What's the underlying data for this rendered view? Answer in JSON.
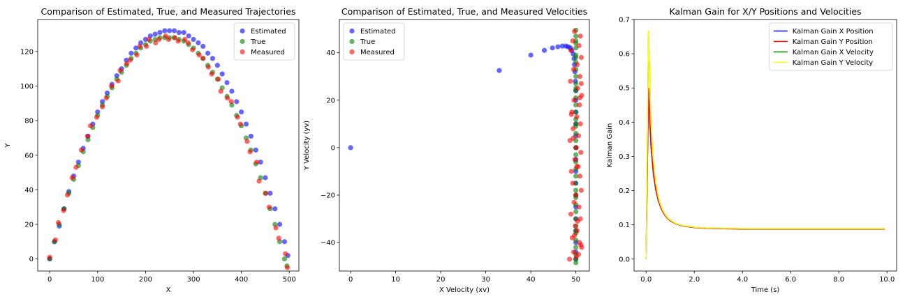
{
  "chart_data": [
    {
      "type": "scatter",
      "title": "Comparison of Estimated, True, and Measured Trajectories",
      "xlabel": "X",
      "ylabel": "Y",
      "xlim": [
        -25,
        520
      ],
      "ylim": [
        -7,
        138.5
      ],
      "xticks": [
        0,
        100,
        200,
        300,
        400,
        500
      ],
      "yticks": [
        0,
        20,
        40,
        60,
        80,
        100,
        120
      ],
      "grid": false,
      "legend_position": "top-right",
      "series": [
        {
          "name": "Estimated",
          "color": "#0000ff",
          "x": [
            0,
            10,
            20,
            30,
            40,
            50,
            60,
            70,
            80,
            90,
            100,
            110,
            120,
            130,
            140,
            150,
            160,
            170,
            180,
            190,
            200,
            210,
            220,
            230,
            240,
            250,
            260,
            270,
            280,
            290,
            300,
            310,
            320,
            330,
            340,
            350,
            360,
            370,
            380,
            390,
            400,
            410,
            420,
            430,
            440,
            450,
            460,
            470,
            480,
            490,
            497
          ],
          "y": [
            0,
            10,
            19,
            29,
            39,
            48,
            56,
            64,
            71,
            78,
            85,
            91,
            96,
            101,
            106,
            110,
            115,
            119,
            122,
            125,
            127,
            129,
            130,
            131,
            132,
            132,
            132,
            131,
            131,
            129,
            127,
            125,
            123,
            119,
            116,
            112,
            107,
            102,
            97,
            91,
            85,
            78,
            71,
            63,
            56,
            47,
            38,
            29,
            20,
            10,
            2
          ]
        },
        {
          "name": "True",
          "color": "#008000",
          "x": [
            0,
            10,
            20,
            30,
            40,
            50,
            60,
            70,
            80,
            90,
            100,
            110,
            120,
            130,
            140,
            150,
            160,
            170,
            180,
            190,
            200,
            210,
            220,
            230,
            240,
            250,
            260,
            270,
            280,
            290,
            300,
            310,
            320,
            330,
            340,
            350,
            360,
            370,
            380,
            390,
            400,
            410,
            420,
            430,
            440,
            450,
            460,
            470,
            480,
            490,
            495
          ],
          "y": [
            0,
            10,
            20,
            29,
            38,
            46,
            54,
            62,
            69,
            76,
            83,
            89,
            94,
            99,
            104,
            108,
            112,
            116,
            119,
            122,
            124,
            126,
            127,
            128,
            128,
            128,
            128,
            127,
            126,
            124,
            122,
            119,
            116,
            112,
            108,
            104,
            99,
            94,
            89,
            83,
            77,
            70,
            63,
            55,
            47,
            38,
            29,
            20,
            10,
            0,
            -4
          ]
        },
        {
          "name": "Measured",
          "color": "#ff0000",
          "x": [
            0,
            12,
            18,
            29,
            37,
            47,
            55,
            66,
            79,
            85,
            98,
            110,
            118,
            129,
            143,
            147,
            161,
            168,
            182,
            188,
            202,
            207,
            221,
            228,
            242,
            248,
            261,
            268,
            282,
            289,
            298,
            312,
            320,
            331,
            338,
            352,
            357,
            371,
            379,
            392,
            398,
            412,
            418,
            432,
            437,
            451,
            458,
            472,
            478,
            492,
            496
          ],
          "y": [
            1,
            11,
            21,
            28,
            37,
            47,
            53,
            63,
            71,
            77,
            82,
            88,
            93,
            100,
            103,
            109,
            113,
            115,
            118,
            123,
            123,
            127,
            125,
            127,
            129,
            127,
            128,
            126,
            127,
            125,
            121,
            118,
            116,
            111,
            107,
            104,
            97,
            93,
            91,
            82,
            78,
            68,
            62,
            56,
            45,
            38,
            30,
            18,
            12,
            3,
            -5
          ]
        }
      ]
    },
    {
      "type": "scatter",
      "title": "Comparison of Estimated, True, and Measured Velocities",
      "xlabel": "X Velocity (xv)",
      "ylabel": "Y Velocity (yv)",
      "xlim": [
        -2.5,
        53.0
      ],
      "ylim": [
        -52,
        54
      ],
      "xticks": [
        0,
        10,
        20,
        30,
        40,
        50
      ],
      "yticks": [
        -40,
        -20,
        0,
        20,
        40
      ],
      "grid": false,
      "legend_position": "top-left",
      "series": [
        {
          "name": "Estimated",
          "color": "#0000ff",
          "x": [
            0,
            33,
            40,
            43,
            44.8,
            46,
            47,
            47.8,
            48.3,
            48.8,
            49.1,
            49.4,
            49.6,
            49.7,
            49.8,
            49.9,
            50,
            50,
            50,
            50,
            50,
            50,
            50,
            50,
            50,
            50,
            50,
            50,
            50,
            50,
            50,
            50
          ],
          "y": [
            0,
            32.5,
            39,
            41,
            42,
            42.5,
            42.8,
            42.8,
            42.5,
            42,
            41,
            39.5,
            37.5,
            35,
            32,
            28,
            24,
            20,
            15,
            10,
            5,
            0,
            -5,
            -10,
            -15,
            -20,
            -25,
            -30,
            -35,
            -40,
            -44,
            -47
          ]
        },
        {
          "name": "True",
          "color": "#008000",
          "x": [
            50,
            50,
            50,
            50,
            50,
            50,
            50,
            50,
            50,
            50,
            50,
            50,
            50,
            50,
            50,
            50,
            50,
            50,
            50,
            50,
            50,
            50,
            50,
            50,
            50,
            50,
            50,
            50,
            50,
            50,
            50,
            50,
            50,
            50,
            50,
            50,
            50,
            50,
            50,
            50,
            50
          ],
          "y": [
            49.5,
            47,
            45,
            42,
            39,
            36,
            33,
            30,
            27,
            24,
            21,
            18,
            15,
            12,
            9,
            6,
            3,
            0,
            -3,
            -6,
            -9,
            -12,
            -15,
            -18,
            -21,
            -24,
            -27,
            -30,
            -33,
            -36,
            -39,
            -42,
            -45,
            -47,
            -48.5,
            44,
            38,
            25,
            10,
            -20,
            -35
          ]
        },
        {
          "name": "Measured",
          "color": "#ff0000",
          "x": [
            49.7,
            51,
            49.3,
            50.7,
            48.9,
            51.2,
            50.3,
            49.5,
            50.9,
            48.8,
            50.4,
            51.3,
            49.6,
            50.8,
            49.1,
            50.2,
            51.0,
            49.4,
            50.6,
            48.7,
            50.1,
            51.1,
            49.8,
            50.5,
            49.0,
            50.9,
            49.3,
            51.2,
            50.0,
            49.6,
            50.7,
            48.9,
            51.0,
            49.9,
            50.3,
            49.2,
            50.8,
            51.3,
            49.5,
            50.1,
            48.6,
            50.6,
            51.1,
            49.7,
            50.4,
            49.0,
            50.9,
            51.2,
            49.4,
            50.2
          ],
          "y": [
            49,
            47,
            45,
            43,
            41,
            38,
            35,
            33,
            30,
            28,
            25,
            22,
            20,
            18,
            15,
            13,
            10,
            8,
            5,
            3,
            0,
            -2,
            -5,
            -8,
            -10,
            -12,
            -15,
            -18,
            -20,
            -23,
            -25,
            -28,
            -30,
            -33,
            -35,
            -38,
            -40,
            -42,
            -44,
            -46,
            -47,
            -45,
            -41,
            -37,
            -31,
            14,
            21,
            27,
            4,
            -8
          ]
        }
      ]
    },
    {
      "type": "line",
      "title": "Kalman Gain for X/Y Positions and Velocities",
      "xlabel": "Time (s)",
      "ylabel": "Kalman Gain",
      "xlim": [
        -0.5,
        10.4
      ],
      "ylim": [
        -0.035,
        0.7
      ],
      "xticks": [
        0,
        2,
        4,
        6,
        8,
        10
      ],
      "yticks": [
        0.0,
        0.1,
        0.2,
        0.3,
        0.4,
        0.5,
        0.6,
        0.7
      ],
      "grid": false,
      "legend_position": "top-right",
      "x": [
        0,
        0.1,
        0.2,
        0.3,
        0.4,
        0.5,
        0.6,
        0.7,
        0.8,
        0.9,
        1.0,
        1.2,
        1.4,
        1.6,
        1.8,
        2.0,
        2.5,
        3.0,
        4.0,
        5.0,
        6.0,
        7.0,
        8.0,
        9.0,
        9.9
      ],
      "series": [
        {
          "name": "Kalman Gain X Position",
          "color": "#0000ff",
          "values": [
            0,
            0.5,
            0.334,
            0.25,
            0.203,
            0.172,
            0.152,
            0.137,
            0.126,
            0.118,
            0.112,
            0.104,
            0.099,
            0.096,
            0.094,
            0.092,
            0.09,
            0.089,
            0.088,
            0.088,
            0.088,
            0.088,
            0.088,
            0.088,
            0.088
          ]
        },
        {
          "name": "Kalman Gain Y Position",
          "color": "#ff0000",
          "values": [
            0,
            0.5,
            0.334,
            0.25,
            0.203,
            0.172,
            0.152,
            0.137,
            0.126,
            0.118,
            0.112,
            0.104,
            0.099,
            0.096,
            0.094,
            0.092,
            0.09,
            0.089,
            0.088,
            0.088,
            0.088,
            0.088,
            0.088,
            0.088,
            0.088
          ]
        },
        {
          "name": "Kalman Gain X Velocity",
          "color": "#008000",
          "values": [
            0,
            0.667,
            0.4,
            0.286,
            0.222,
            0.182,
            0.158,
            0.141,
            0.129,
            0.12,
            0.114,
            0.105,
            0.1,
            0.097,
            0.095,
            0.093,
            0.091,
            0.09,
            0.089,
            0.089,
            0.089,
            0.089,
            0.089,
            0.089,
            0.089
          ]
        },
        {
          "name": "Kalman Gain Y Velocity",
          "color": "#ffff00",
          "values": [
            0,
            0.667,
            0.4,
            0.286,
            0.222,
            0.182,
            0.158,
            0.141,
            0.129,
            0.12,
            0.114,
            0.105,
            0.1,
            0.097,
            0.095,
            0.093,
            0.091,
            0.09,
            0.089,
            0.089,
            0.089,
            0.089,
            0.089,
            0.089,
            0.089
          ]
        }
      ]
    }
  ]
}
